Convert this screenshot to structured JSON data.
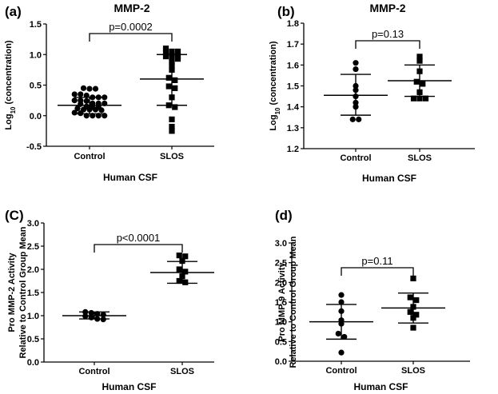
{
  "chart_data": [
    {
      "panel": "(a)",
      "type": "scatter",
      "title": "MMP-2",
      "xlabel": "Human CSF",
      "ylabel": "Log10 (concentration)",
      "ylabel_parts": [
        "Log",
        "10",
        " (concentration)"
      ],
      "categories": [
        "Control",
        "SLOS"
      ],
      "ylim": [
        -0.5,
        1.5
      ],
      "yticks": [
        "-0.5",
        "0.0",
        "0.5",
        "1.0",
        "1.5"
      ],
      "significance": "p=0.0002",
      "series": [
        {
          "category": "Control",
          "marker": "circle",
          "values": [
            0.45,
            0.44,
            0.44,
            0.35,
            0.35,
            0.33,
            0.3,
            0.3,
            0.3,
            0.25,
            0.25,
            0.24,
            0.2,
            0.2,
            0.2,
            0.19,
            0.15,
            0.14,
            0.14,
            0.12,
            0.1,
            0.1,
            0.1,
            0.09,
            0.05,
            0.04,
            0.0,
            0.0,
            0.0,
            0.0
          ],
          "mean": 0.17,
          "sd_upper": 0.3,
          "sd_lower": 0.03
        },
        {
          "category": "SLOS",
          "marker": "square",
          "values": [
            1.1,
            1.05,
            1.05,
            1.03,
            1.0,
            0.98,
            0.97,
            0.95,
            0.93,
            0.88,
            0.82,
            0.75,
            0.62,
            0.58,
            0.48,
            0.45,
            0.3,
            0.17,
            0.14,
            -0.06,
            -0.18,
            -0.25
          ],
          "mean": 0.6,
          "sd_upper": 1.0,
          "sd_lower": 0.17
        }
      ]
    },
    {
      "panel": "(b)",
      "type": "scatter",
      "title": "MMP-2",
      "xlabel": "Human CSF",
      "ylabel": "Log10 (concentration)",
      "ylabel_parts": [
        "Log",
        "10",
        " (concentration)"
      ],
      "categories": [
        "Control",
        "SLOS"
      ],
      "ylim": [
        1.2,
        1.8
      ],
      "yticks": [
        "1.2",
        "1.3",
        "1.4",
        "1.5",
        "1.6",
        "1.7",
        "1.8"
      ],
      "significance": "p=0.13",
      "series": [
        {
          "category": "Control",
          "marker": "circle",
          "values": [
            1.61,
            1.58,
            1.5,
            1.48,
            1.45,
            1.42,
            1.4,
            1.34,
            1.34
          ],
          "mean": 1.455,
          "sd_upper": 1.555,
          "sd_lower": 1.36
        },
        {
          "category": "SLOS",
          "marker": "square",
          "values": [
            1.64,
            1.62,
            1.57,
            1.52,
            1.51,
            1.47,
            1.44,
            1.44,
            1.44
          ],
          "mean": 1.525,
          "sd_upper": 1.6,
          "sd_lower": 1.45
        }
      ]
    },
    {
      "panel": "(C)",
      "type": "scatter",
      "title": "",
      "xlabel": "Human CSF",
      "ylabel": "Pro MMP-2 Activity Relative to Control Group Mean",
      "ylabel_lines": [
        "Pro MMP-2 Activity",
        "Relative to Control Group Mean"
      ],
      "categories": [
        "Control",
        "SLOS"
      ],
      "ylim": [
        0.0,
        3.0
      ],
      "yticks": [
        "0.0",
        "0.5",
        "1.0",
        "1.5",
        "2.0",
        "2.5",
        "3.0"
      ],
      "significance": "p<0.0001",
      "series": [
        {
          "category": "Control",
          "marker": "circle",
          "values": [
            1.08,
            1.06,
            1.04,
            1.02,
            0.99,
            0.96,
            0.93,
            0.92
          ],
          "mean": 1.0,
          "sd_upper": 1.08,
          "sd_lower": 0.93
        },
        {
          "category": "SLOS",
          "marker": "square",
          "values": [
            2.3,
            2.28,
            2.18,
            2.0,
            1.95,
            1.85,
            1.75,
            1.72
          ],
          "mean": 1.93,
          "sd_upper": 2.17,
          "sd_lower": 1.7
        }
      ]
    },
    {
      "panel": "(d)",
      "type": "scatter",
      "title": "",
      "xlabel": "Human CSF",
      "ylabel": "Pro MMP-9 Activity Relative to Control Group Mean",
      "ylabel_lines": [
        "Pro MMP-9 Activity",
        "Relative to Control Group Mean"
      ],
      "categories": [
        "Control",
        "SLOS"
      ],
      "ylim": [
        0.0,
        3.0
      ],
      "yticks": [
        "0.0",
        "0.5",
        "1.0",
        "1.5",
        "2.0",
        "2.5",
        "3.0"
      ],
      "significance": "p=0.11",
      "series": [
        {
          "category": "Control",
          "marker": "circle",
          "values": [
            1.68,
            1.5,
            1.27,
            1.04,
            0.95,
            0.7,
            0.62,
            0.22
          ],
          "mean": 1.0,
          "sd_upper": 1.44,
          "sd_lower": 0.56
        },
        {
          "category": "SLOS",
          "marker": "square",
          "values": [
            2.1,
            1.62,
            1.55,
            1.38,
            1.25,
            1.18,
            1.1,
            0.85
          ],
          "mean": 1.35,
          "sd_upper": 1.73,
          "sd_lower": 0.97
        }
      ]
    }
  ]
}
